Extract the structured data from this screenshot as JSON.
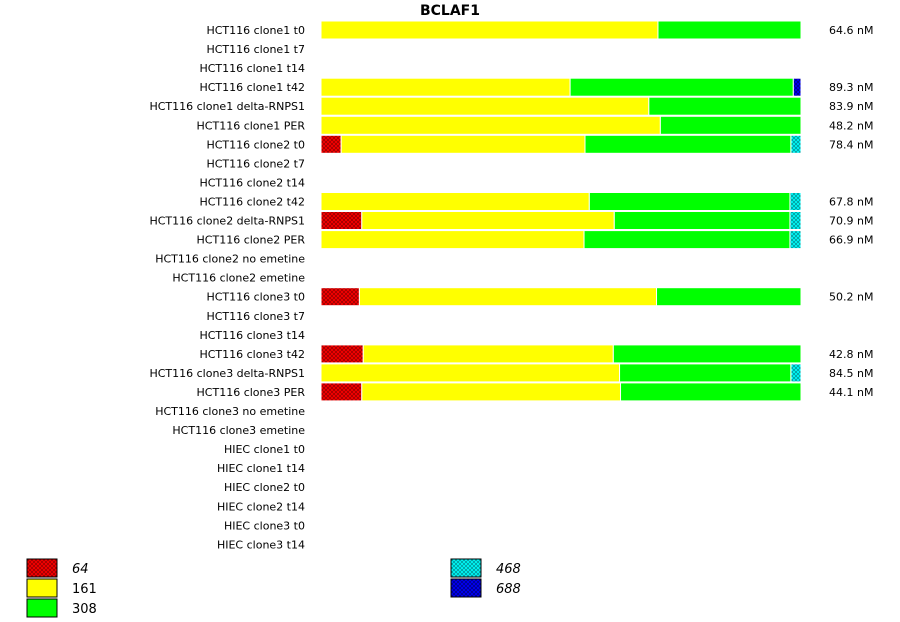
{
  "chart_data": {
    "type": "bar",
    "orientation": "horizontal",
    "stacked": "normalized",
    "title": "BCLAF1",
    "categories": [
      "HCT116 clone1 t0",
      "HCT116 clone1 t7",
      "HCT116 clone1 t14",
      "HCT116 clone1 t42",
      "HCT116 clone1 delta-RNPS1",
      "HCT116 clone1 PER",
      "HCT116 clone2 t0",
      "HCT116 clone2 t7",
      "HCT116 clone2 t14",
      "HCT116 clone2 t42",
      "HCT116 clone2 delta-RNPS1",
      "HCT116 clone2 PER",
      "HCT116 clone2 no emetine",
      "HCT116 clone2 emetine",
      "HCT116 clone3 t0",
      "HCT116 clone3 t7",
      "HCT116 clone3 t14",
      "HCT116 clone3 t42",
      "HCT116 clone3 delta-RNPS1",
      "HCT116 clone3 PER",
      "HCT116 clone3 no emetine",
      "HCT116 clone3 emetine",
      "HIEC clone1 t0",
      "HIEC clone1 t14",
      "HIEC clone2 t0",
      "HIEC clone2 t14",
      "HIEC clone3 t0",
      "HIEC clone3 t14"
    ],
    "totals": [
      "64.6 nM",
      "",
      "",
      "89.3 nM",
      "83.9 nM",
      "48.2 nM",
      "78.4 nM",
      "",
      "",
      "67.8 nM",
      "70.9 nM",
      "66.9 nM",
      "",
      "",
      "50.2 nM",
      "",
      "",
      "42.8 nM",
      "84.5 nM",
      "44.1 nM",
      "",
      "",
      "",
      "",
      "",
      "",
      "",
      ""
    ],
    "series": [
      {
        "name": "64",
        "color": "#ff0000",
        "pattern": true,
        "italic": true,
        "values": [
          0,
          0,
          0,
          0,
          0,
          0,
          4.2,
          0,
          0,
          0,
          8.5,
          0,
          0,
          0,
          8.0,
          0,
          0,
          8.8,
          0,
          8.5,
          0,
          0,
          0,
          0,
          0,
          0,
          0,
          0
        ]
      },
      {
        "name": "161",
        "color": "#ffff00",
        "pattern": false,
        "italic": false,
        "values": [
          70.2,
          0,
          0,
          51.9,
          68.3,
          70.7,
          50.8,
          0,
          0,
          55.9,
          52.6,
          54.8,
          0,
          0,
          61.9,
          0,
          0,
          52.1,
          62.2,
          53.9,
          0,
          0,
          0,
          0,
          0,
          0,
          0,
          0
        ]
      },
      {
        "name": "308",
        "color": "#00ff00",
        "pattern": false,
        "italic": false,
        "values": [
          29.8,
          0,
          0,
          46.5,
          31.7,
          29.3,
          42.9,
          0,
          0,
          41.8,
          36.6,
          42.9,
          0,
          0,
          30.1,
          0,
          0,
          39.1,
          35.7,
          37.6,
          0,
          0,
          0,
          0,
          0,
          0,
          0,
          0
        ]
      },
      {
        "name": "468",
        "color": "#00ffff",
        "pattern": true,
        "italic": true,
        "values": [
          0,
          0,
          0,
          0,
          0,
          0,
          2.1,
          0,
          0,
          2.3,
          2.3,
          2.3,
          0,
          0,
          0,
          0,
          0,
          0,
          2.1,
          0,
          0,
          0,
          0,
          0,
          0,
          0,
          0,
          0
        ]
      },
      {
        "name": "688",
        "color": "#0000ff",
        "pattern": true,
        "italic": true,
        "values": [
          0,
          0,
          0,
          1.6,
          0,
          0,
          0,
          0,
          0,
          0,
          0,
          0,
          0,
          0,
          0,
          0,
          0,
          0,
          0,
          0,
          0,
          0,
          0,
          0,
          0,
          0,
          0,
          0
        ]
      }
    ],
    "xlim": [
      0,
      100
    ],
    "xlabel": "",
    "ylabel": "",
    "grid": false,
    "legend_position": "bottom"
  }
}
